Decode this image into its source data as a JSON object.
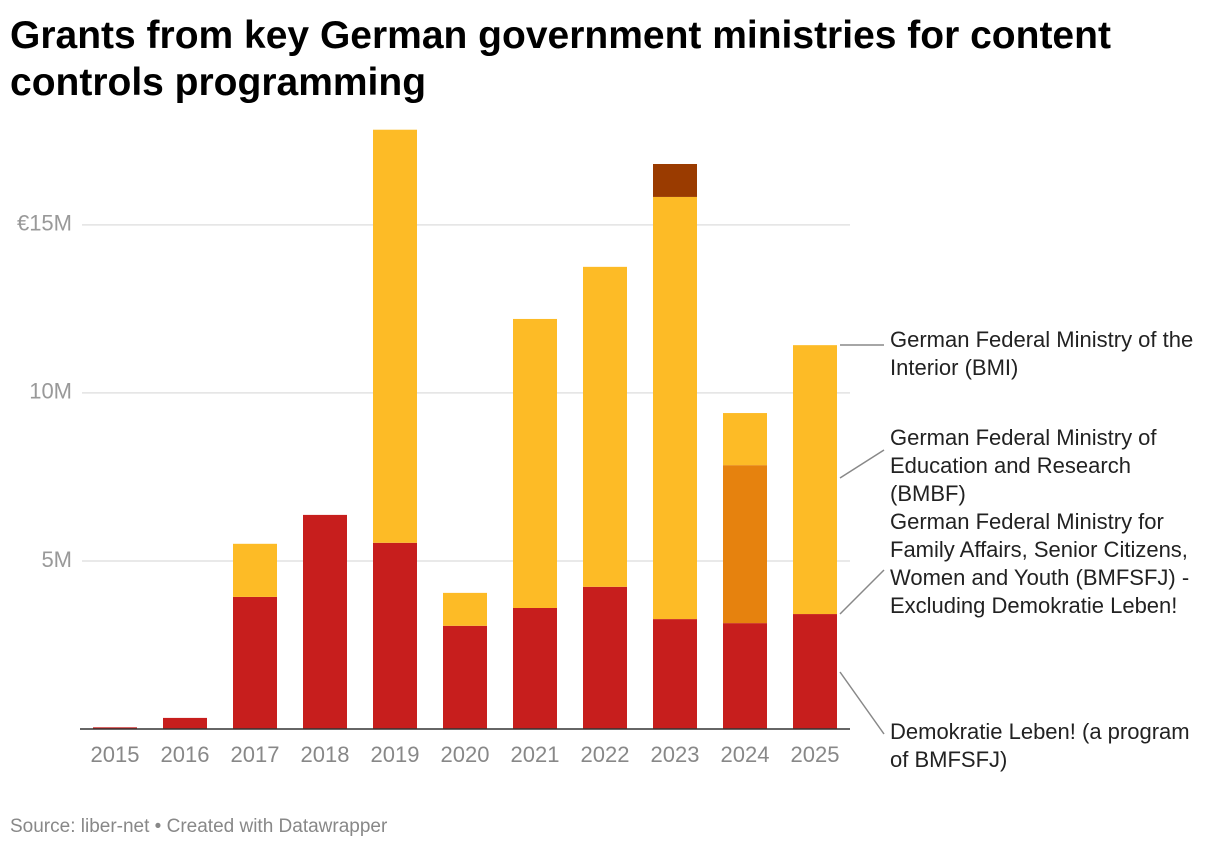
{
  "chart_data": {
    "type": "stacked-bar",
    "title": "Grants from key German government ministries for content controls programming",
    "source": "Source: liber-net • Created with Datawrapper",
    "categories": [
      "2015",
      "2016",
      "2017",
      "2018",
      "2019",
      "2020",
      "2021",
      "2022",
      "2023",
      "2024",
      "2025"
    ],
    "series": [
      {
        "name": "Demokratie Leben! (a program of BMFSFJ)",
        "color": "#c71e1d",
        "values": [
          50000,
          330000,
          3930000,
          6370000,
          5540000,
          3070000,
          3600000,
          4230000,
          3270000,
          3150000,
          3420000
        ]
      },
      {
        "name": "German Federal Ministry for Family Affairs, Senior Citizens, Women and Youth (BMFSFJ) - Excluding Demokratie Leben!",
        "color": "#e6820e",
        "values": [
          0,
          0,
          0,
          0,
          0,
          0,
          0,
          0,
          0,
          4700000,
          0
        ]
      },
      {
        "name": "German Federal Ministry of Education and Research (BMBF)",
        "color": "#fdbb26",
        "values": [
          0,
          0,
          1580000,
          0,
          12290000,
          980000,
          8600000,
          9520000,
          12560000,
          1550000,
          8000000
        ]
      },
      {
        "name": "German Federal Ministry of the Interior (BMI)",
        "color": "#9a3b00",
        "values": [
          0,
          0,
          0,
          0,
          0,
          0,
          0,
          0,
          980000,
          0,
          0
        ]
      }
    ],
    "ylim": [
      0,
      18000000
    ],
    "yticks": [
      {
        "value": 5000000,
        "label": "5M"
      },
      {
        "value": 10000000,
        "label": "10M"
      },
      {
        "value": 15000000,
        "label": "€15M"
      }
    ],
    "grid": true
  }
}
